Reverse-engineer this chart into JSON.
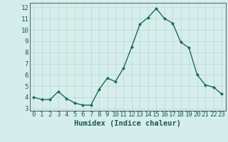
{
  "x": [
    0,
    1,
    2,
    3,
    4,
    5,
    6,
    7,
    8,
    9,
    10,
    11,
    12,
    13,
    14,
    15,
    16,
    17,
    18,
    19,
    20,
    21,
    22,
    23
  ],
  "y": [
    4.0,
    3.8,
    3.8,
    4.5,
    3.9,
    3.5,
    3.3,
    3.3,
    4.7,
    5.7,
    5.4,
    6.6,
    8.5,
    10.5,
    11.1,
    11.9,
    11.0,
    10.6,
    8.9,
    8.4,
    6.0,
    5.1,
    4.9,
    4.3
  ],
  "line_color": "#1a6b5a",
  "marker": "D",
  "marker_size": 2,
  "bg_color": "#d6eeeb",
  "grid_color": "#b8d8d4",
  "xlabel": "Humidex (Indice chaleur)",
  "xlim": [
    -0.5,
    23.5
  ],
  "ylim": [
    2.8,
    12.4
  ],
  "yticks": [
    3,
    4,
    5,
    6,
    7,
    8,
    9,
    10,
    11,
    12
  ],
  "xticks": [
    0,
    1,
    2,
    3,
    4,
    5,
    6,
    7,
    8,
    9,
    10,
    11,
    12,
    13,
    14,
    15,
    16,
    17,
    18,
    19,
    20,
    21,
    22,
    23
  ],
  "xlabel_fontsize": 7.5,
  "tick_fontsize": 6.5,
  "linewidth": 1.0
}
